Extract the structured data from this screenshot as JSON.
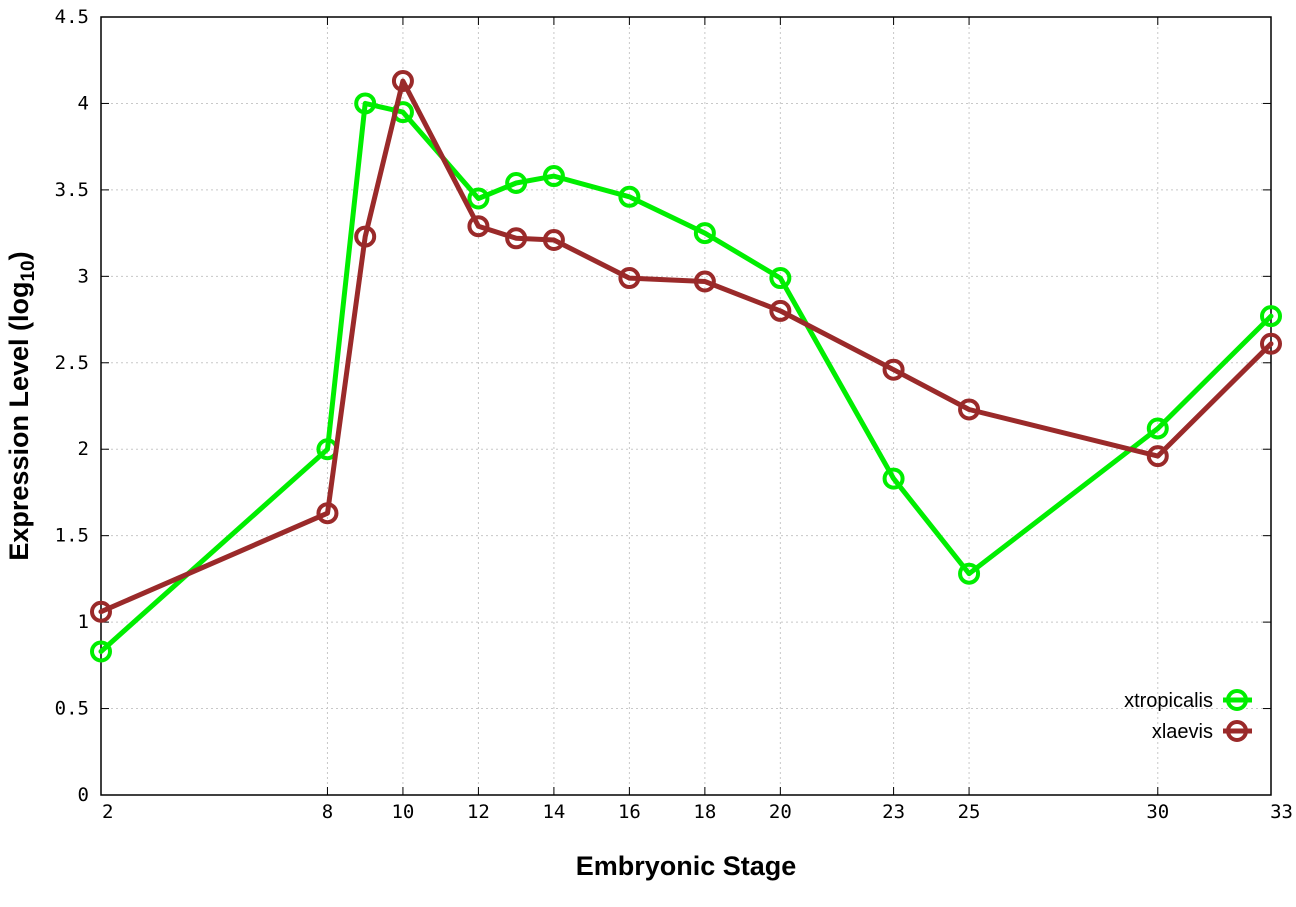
{
  "chart_data": {
    "type": "line",
    "xlabel": "Embryonic Stage",
    "ylabel": {
      "main": "Expression Level (log",
      "subscript": "10",
      "close": ")"
    },
    "x_ticks": [
      2,
      8,
      10,
      12,
      14,
      16,
      18,
      20,
      23,
      25,
      30,
      33
    ],
    "x_tick_labels": [
      "2",
      "8",
      "10",
      "12",
      "14",
      "16",
      "18",
      "20",
      "23",
      "25",
      "30",
      "33"
    ],
    "y_ticks": [
      0,
      0.5,
      1,
      1.5,
      2,
      2.5,
      3,
      3.5,
      4,
      4.5
    ],
    "y_tick_labels": [
      "0",
      "0.5",
      "1",
      "1.5",
      "2",
      "2.5",
      "3",
      "3.5",
      "4",
      "4.5"
    ],
    "xlim": [
      2,
      33
    ],
    "ylim": [
      0,
      4.5
    ],
    "grid": true,
    "legend_position": "bottom-right",
    "series": [
      {
        "name": "xtropicalis",
        "color": "#00ee00",
        "x": [
          2,
          8,
          9,
          10,
          12,
          13,
          14,
          16,
          18,
          20,
          23,
          25,
          30,
          33
        ],
        "y": [
          0.83,
          2.0,
          4.0,
          3.95,
          3.45,
          3.54,
          3.58,
          3.46,
          3.25,
          2.99,
          1.83,
          1.28,
          2.12,
          2.77
        ]
      },
      {
        "name": "xlaevis",
        "color": "#9a2a2a",
        "x": [
          2,
          8,
          9,
          10,
          12,
          13,
          14,
          16,
          18,
          20,
          23,
          25,
          30,
          33
        ],
        "y": [
          1.06,
          1.63,
          3.23,
          4.13,
          3.29,
          3.22,
          3.21,
          2.99,
          2.97,
          2.8,
          2.46,
          2.23,
          1.96,
          2.61
        ]
      }
    ]
  }
}
